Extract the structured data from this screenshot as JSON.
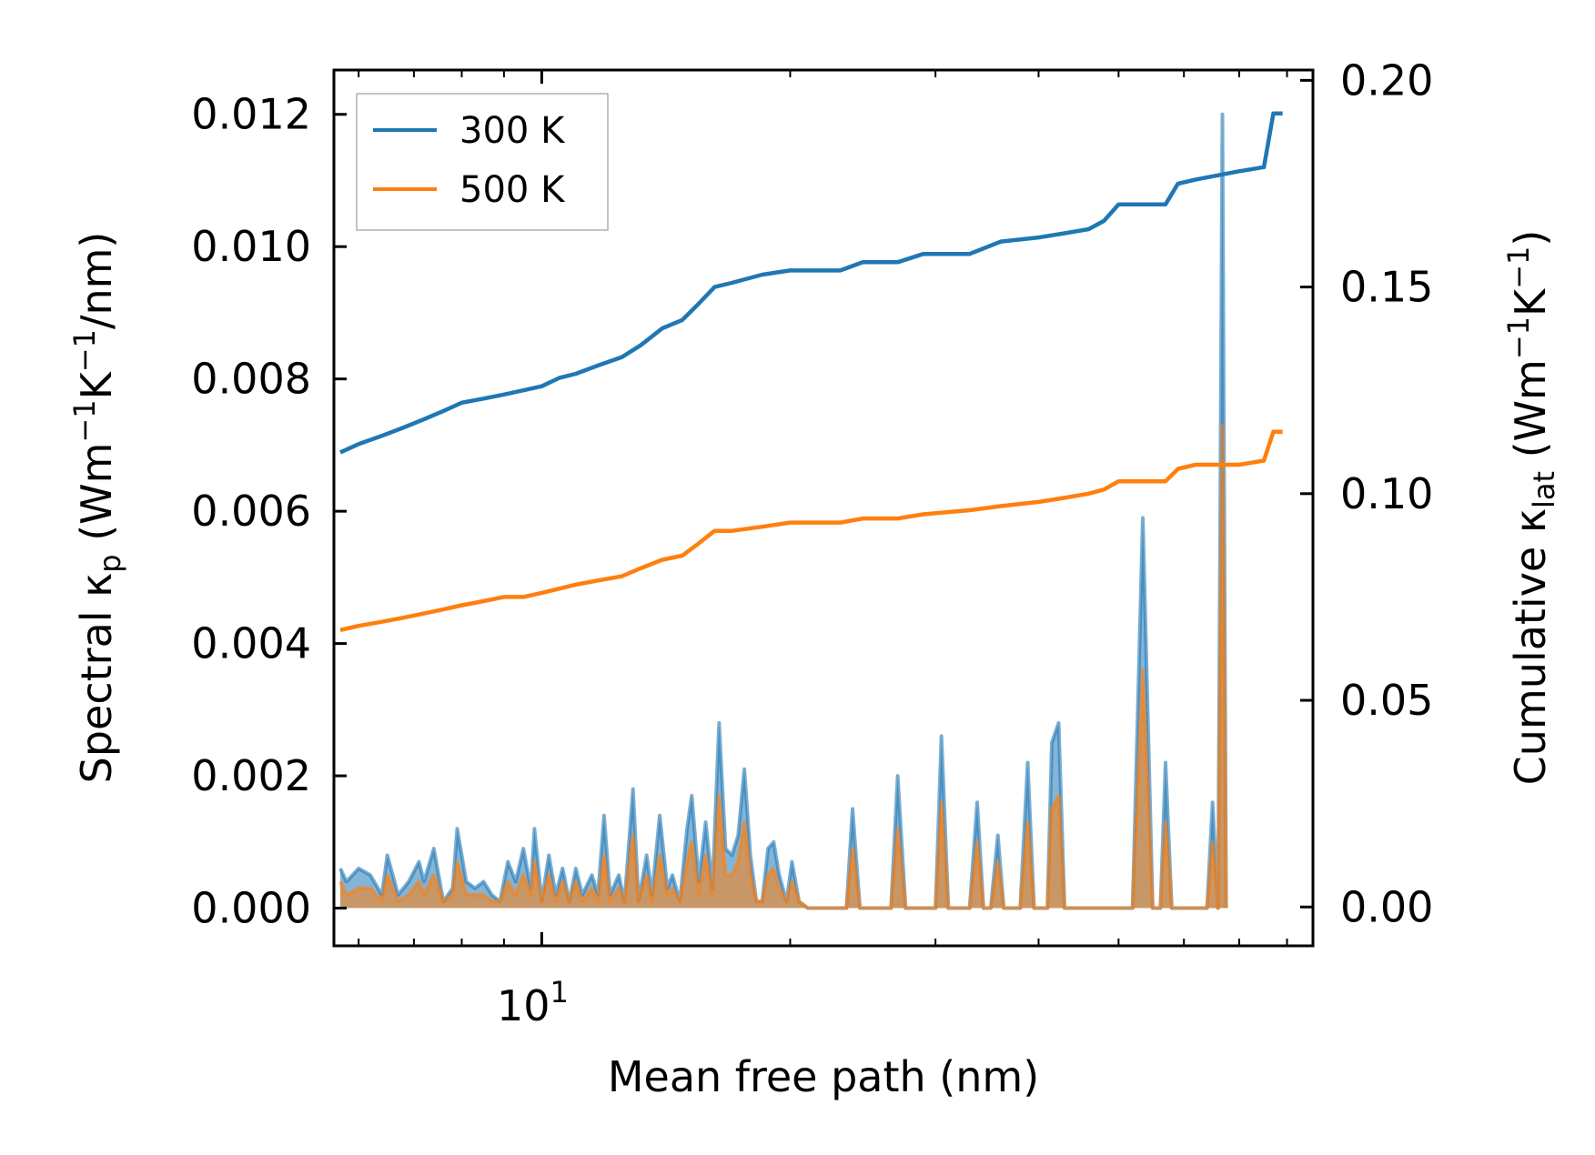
{
  "chart_data": {
    "type": "line",
    "title": "",
    "xlabel": "Mean free path (nm)",
    "xscale": "log",
    "xlim": [
      5.6,
      86
    ],
    "x_tick_labels": [
      {
        "value": 10,
        "base": "10",
        "exp": "1"
      }
    ],
    "left_axis": {
      "label_parts": {
        "prefix": "Spectral κ",
        "sub": "p",
        "middle": " (Wm",
        "sup1": "−1",
        "k": "K",
        "sup2": "−1",
        "suffix": "/nm)"
      },
      "ylim": [
        -0.00057,
        0.01267
      ],
      "ticks": [
        "0.000",
        "0.002",
        "0.004",
        "0.006",
        "0.008",
        "0.010",
        "0.012"
      ],
      "tick_values": [
        0,
        0.002,
        0.004,
        0.006,
        0.008,
        0.01,
        0.012
      ]
    },
    "right_axis": {
      "label_parts": {
        "prefix": "Cumulative κ",
        "sub": "lat",
        "middle": " (Wm",
        "sup1": "−1",
        "k": "K",
        "sup2": "−1",
        "suffix": ")"
      },
      "ylim": [
        -0.0094,
        0.2025
      ],
      "ticks": [
        "0.00",
        "0.05",
        "0.10",
        "0.15",
        "0.20"
      ],
      "tick_values": [
        0,
        0.05,
        0.1,
        0.15,
        0.2
      ]
    },
    "colors": {
      "300K": "#1f77b4",
      "500K": "#ff7f0e"
    },
    "legend": {
      "position": "top-left",
      "entries": [
        "300 K",
        "500 K"
      ]
    },
    "cumulative_series": [
      {
        "name": "300 K",
        "axis": "right",
        "points": [
          [
            5.7,
            0.11
          ],
          [
            6.0,
            0.112
          ],
          [
            6.4,
            0.114
          ],
          [
            6.8,
            0.116
          ],
          [
            7.2,
            0.118
          ],
          [
            7.6,
            0.12
          ],
          [
            8.0,
            0.122
          ],
          [
            8.5,
            0.123
          ],
          [
            9.0,
            0.124
          ],
          [
            9.5,
            0.125
          ],
          [
            10.0,
            0.126
          ],
          [
            10.5,
            0.128
          ],
          [
            11.0,
            0.129
          ],
          [
            11.7,
            0.131
          ],
          [
            12.5,
            0.133
          ],
          [
            13.2,
            0.136
          ],
          [
            14.0,
            0.14
          ],
          [
            14.8,
            0.142
          ],
          [
            15.5,
            0.146
          ],
          [
            16.2,
            0.15
          ],
          [
            17.0,
            0.151
          ],
          [
            18.5,
            0.153
          ],
          [
            20.0,
            0.154
          ],
          [
            23.0,
            0.154
          ],
          [
            24.5,
            0.156
          ],
          [
            27.0,
            0.156
          ],
          [
            29.0,
            0.158
          ],
          [
            33.0,
            0.158
          ],
          [
            36.0,
            0.161
          ],
          [
            40.0,
            0.162
          ],
          [
            43.0,
            0.163
          ],
          [
            46.0,
            0.164
          ],
          [
            48.0,
            0.166
          ],
          [
            50.0,
            0.17
          ],
          [
            57.0,
            0.17
          ],
          [
            59.0,
            0.175
          ],
          [
            62.0,
            0.176
          ],
          [
            70.0,
            0.178
          ],
          [
            75.0,
            0.179
          ],
          [
            77.0,
            0.192
          ],
          [
            79.0,
            0.192
          ]
        ]
      },
      {
        "name": "500 K",
        "axis": "right",
        "points": [
          [
            5.7,
            0.067
          ],
          [
            6.0,
            0.068
          ],
          [
            6.4,
            0.069
          ],
          [
            6.8,
            0.07
          ],
          [
            7.2,
            0.071
          ],
          [
            7.6,
            0.072
          ],
          [
            8.0,
            0.073
          ],
          [
            8.5,
            0.074
          ],
          [
            9.0,
            0.075
          ],
          [
            9.5,
            0.075
          ],
          [
            10.0,
            0.076
          ],
          [
            10.5,
            0.077
          ],
          [
            11.0,
            0.078
          ],
          [
            11.7,
            0.079
          ],
          [
            12.5,
            0.08
          ],
          [
            13.2,
            0.082
          ],
          [
            14.0,
            0.084
          ],
          [
            14.8,
            0.085
          ],
          [
            15.5,
            0.088
          ],
          [
            16.2,
            0.091
          ],
          [
            17.0,
            0.091
          ],
          [
            18.5,
            0.092
          ],
          [
            20.0,
            0.093
          ],
          [
            23.0,
            0.093
          ],
          [
            24.5,
            0.094
          ],
          [
            27.0,
            0.094
          ],
          [
            29.0,
            0.095
          ],
          [
            33.0,
            0.096
          ],
          [
            36.0,
            0.097
          ],
          [
            40.0,
            0.098
          ],
          [
            43.0,
            0.099
          ],
          [
            46.0,
            0.1
          ],
          [
            48.0,
            0.101
          ],
          [
            50.0,
            0.103
          ],
          [
            57.0,
            0.103
          ],
          [
            59.0,
            0.106
          ],
          [
            62.0,
            0.107
          ],
          [
            70.0,
            0.107
          ],
          [
            75.0,
            0.108
          ],
          [
            77.0,
            0.115
          ],
          [
            79.0,
            0.115
          ]
        ]
      }
    ],
    "spectral_series": [
      {
        "name": "300 K",
        "axis": "left",
        "points": [
          [
            5.7,
            0.0006
          ],
          [
            5.8,
            0.0004
          ],
          [
            6.0,
            0.0006
          ],
          [
            6.2,
            0.0005
          ],
          [
            6.4,
            0.0002
          ],
          [
            6.5,
            0.0008
          ],
          [
            6.7,
            0.0002
          ],
          [
            6.9,
            0.0004
          ],
          [
            7.1,
            0.0007
          ],
          [
            7.2,
            0.0004
          ],
          [
            7.4,
            0.0009
          ],
          [
            7.6,
            0.0001
          ],
          [
            7.8,
            0.0003
          ],
          [
            7.9,
            0.0012
          ],
          [
            8.1,
            0.0004
          ],
          [
            8.3,
            0.0003
          ],
          [
            8.5,
            0.0004
          ],
          [
            8.7,
            0.0002
          ],
          [
            8.9,
            0.0001
          ],
          [
            9.1,
            0.0007
          ],
          [
            9.3,
            0.0004
          ],
          [
            9.5,
            0.0009
          ],
          [
            9.7,
            0.0003
          ],
          [
            9.8,
            0.0012
          ],
          [
            10.0,
            0.0001
          ],
          [
            10.2,
            0.0008
          ],
          [
            10.4,
            0.0002
          ],
          [
            10.6,
            0.0006
          ],
          [
            10.8,
            0.0001
          ],
          [
            11.0,
            0.0006
          ],
          [
            11.2,
            0.0002
          ],
          [
            11.5,
            0.0005
          ],
          [
            11.7,
            0.0002
          ],
          [
            11.9,
            0.0014
          ],
          [
            12.1,
            0.0002
          ],
          [
            12.4,
            0.0005
          ],
          [
            12.6,
            0.0001
          ],
          [
            12.9,
            0.0018
          ],
          [
            13.1,
            0.0001
          ],
          [
            13.4,
            0.0008
          ],
          [
            13.6,
            0.0002
          ],
          [
            13.9,
            0.0014
          ],
          [
            14.2,
            0.0003
          ],
          [
            14.4,
            0.0005
          ],
          [
            14.7,
            0.0001
          ],
          [
            15.0,
            0.0012
          ],
          [
            15.2,
            0.0017
          ],
          [
            15.5,
            0.0004
          ],
          [
            15.8,
            0.0013
          ],
          [
            16.1,
            0.0003
          ],
          [
            16.4,
            0.0028
          ],
          [
            16.7,
            0.0009
          ],
          [
            17.0,
            0.0008
          ],
          [
            17.3,
            0.0011
          ],
          [
            17.6,
            0.0021
          ],
          [
            17.9,
            0.0008
          ],
          [
            18.2,
            0.0001
          ],
          [
            18.5,
            0.0001
          ],
          [
            18.8,
            0.0009
          ],
          [
            19.1,
            0.001
          ],
          [
            19.4,
            0.0005
          ],
          [
            19.8,
            0.0001
          ],
          [
            20.1,
            0.0007
          ],
          [
            20.5,
            0.0001
          ],
          [
            21.0,
            0.0
          ],
          [
            22.0,
            0.0
          ],
          [
            23.0,
            0.0
          ],
          [
            23.4,
            0.0
          ],
          [
            23.8,
            0.0015
          ],
          [
            24.3,
            0.0
          ],
          [
            26.0,
            0.0
          ],
          [
            26.5,
            0.0
          ],
          [
            27.0,
            0.002
          ],
          [
            27.6,
            0.0
          ],
          [
            29.0,
            0.0
          ],
          [
            30.0,
            0.0
          ],
          [
            30.5,
            0.0026
          ],
          [
            31.1,
            0.0
          ],
          [
            33.0,
            0.0
          ],
          [
            33.7,
            0.0016
          ],
          [
            34.3,
            0.0
          ],
          [
            35.0,
            0.0
          ],
          [
            35.7,
            0.0011
          ],
          [
            36.3,
            0.0
          ],
          [
            38.0,
            0.0
          ],
          [
            38.8,
            0.0022
          ],
          [
            39.5,
            0.0
          ],
          [
            41.0,
            0.0
          ],
          [
            41.5,
            0.0025
          ],
          [
            42.3,
            0.0028
          ],
          [
            43.0,
            0.0
          ],
          [
            52.0,
            0.0
          ],
          [
            53.5,
            0.0059
          ],
          [
            55.0,
            0.0
          ],
          [
            56.2,
            0.0
          ],
          [
            57.0,
            0.0022
          ],
          [
            58.0,
            0.0
          ],
          [
            64.0,
            0.0
          ],
          [
            65.0,
            0.0016
          ],
          [
            66.0,
            0.0
          ],
          [
            66.8,
            0.012
          ],
          [
            67.5,
            0.0
          ]
        ]
      },
      {
        "name": "500 K",
        "axis": "left",
        "points": [
          [
            5.7,
            0.0004
          ],
          [
            5.8,
            0.0002
          ],
          [
            6.0,
            0.0003
          ],
          [
            6.2,
            0.0003
          ],
          [
            6.4,
            0.0001
          ],
          [
            6.5,
            0.0005
          ],
          [
            6.7,
            0.0001
          ],
          [
            6.9,
            0.0002
          ],
          [
            7.1,
            0.0004
          ],
          [
            7.2,
            0.0002
          ],
          [
            7.4,
            0.0005
          ],
          [
            7.6,
            0.0001
          ],
          [
            7.8,
            0.0002
          ],
          [
            7.9,
            0.0007
          ],
          [
            8.1,
            0.0002
          ],
          [
            8.3,
            0.0002
          ],
          [
            8.5,
            0.0002
          ],
          [
            8.7,
            0.0001
          ],
          [
            8.9,
            0.0001
          ],
          [
            9.1,
            0.0004
          ],
          [
            9.3,
            0.0002
          ],
          [
            9.5,
            0.0005
          ],
          [
            9.7,
            0.0002
          ],
          [
            9.8,
            0.0007
          ],
          [
            10.0,
            0.0001
          ],
          [
            10.2,
            0.0005
          ],
          [
            10.4,
            0.0001
          ],
          [
            10.6,
            0.0004
          ],
          [
            10.8,
            0.0001
          ],
          [
            11.0,
            0.0004
          ],
          [
            11.2,
            0.0001
          ],
          [
            11.5,
            0.0003
          ],
          [
            11.7,
            0.0001
          ],
          [
            11.9,
            0.0008
          ],
          [
            12.1,
            0.0001
          ],
          [
            12.4,
            0.0003
          ],
          [
            12.6,
            0.0001
          ],
          [
            12.9,
            0.0011
          ],
          [
            13.1,
            0.0001
          ],
          [
            13.4,
            0.0005
          ],
          [
            13.6,
            0.0001
          ],
          [
            13.9,
            0.0008
          ],
          [
            14.2,
            0.0002
          ],
          [
            14.4,
            0.0003
          ],
          [
            14.7,
            0.0001
          ],
          [
            15.0,
            0.0007
          ],
          [
            15.2,
            0.001
          ],
          [
            15.5,
            0.0002
          ],
          [
            15.8,
            0.0008
          ],
          [
            16.1,
            0.0002
          ],
          [
            16.4,
            0.0017
          ],
          [
            16.7,
            0.0005
          ],
          [
            17.0,
            0.0005
          ],
          [
            17.3,
            0.0007
          ],
          [
            17.6,
            0.0013
          ],
          [
            17.9,
            0.0005
          ],
          [
            18.2,
            0.0001
          ],
          [
            18.5,
            0.0001
          ],
          [
            18.8,
            0.0005
          ],
          [
            19.1,
            0.0006
          ],
          [
            19.4,
            0.0003
          ],
          [
            19.8,
            0.0001
          ],
          [
            20.1,
            0.0004
          ],
          [
            20.5,
            0.0001
          ],
          [
            21.0,
            0.0
          ],
          [
            22.0,
            0.0
          ],
          [
            23.0,
            0.0
          ],
          [
            23.4,
            0.0
          ],
          [
            23.8,
            0.0009
          ],
          [
            24.3,
            0.0
          ],
          [
            26.0,
            0.0
          ],
          [
            26.5,
            0.0
          ],
          [
            27.0,
            0.0012
          ],
          [
            27.6,
            0.0
          ],
          [
            29.0,
            0.0
          ],
          [
            30.0,
            0.0
          ],
          [
            30.5,
            0.0016
          ],
          [
            31.1,
            0.0
          ],
          [
            33.0,
            0.0
          ],
          [
            33.7,
            0.001
          ],
          [
            34.3,
            0.0
          ],
          [
            35.0,
            0.0
          ],
          [
            35.7,
            0.0007
          ],
          [
            36.3,
            0.0
          ],
          [
            38.0,
            0.0
          ],
          [
            38.8,
            0.0013
          ],
          [
            39.5,
            0.0
          ],
          [
            41.0,
            0.0
          ],
          [
            41.5,
            0.0015
          ],
          [
            42.3,
            0.0017
          ],
          [
            43.0,
            0.0
          ],
          [
            52.0,
            0.0
          ],
          [
            53.5,
            0.0036
          ],
          [
            55.0,
            0.0
          ],
          [
            56.2,
            0.0
          ],
          [
            57.0,
            0.0013
          ],
          [
            58.0,
            0.0
          ],
          [
            64.0,
            0.0
          ],
          [
            65.0,
            0.001
          ],
          [
            66.0,
            0.0
          ],
          [
            66.8,
            0.0073
          ],
          [
            67.5,
            0.0
          ]
        ]
      }
    ]
  }
}
